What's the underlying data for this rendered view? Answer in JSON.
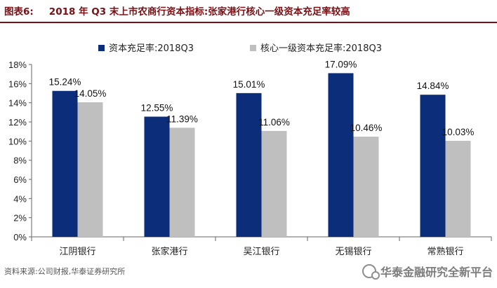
{
  "figure": {
    "label": "图表6:",
    "title": "2018 年 Q3 末上市农商行资本指标:张家港行核心一级资本充足率较高",
    "source": "资料来源:公司财报,华泰证券研究所",
    "watermark": "华泰金融研究全新平台"
  },
  "colors": {
    "title": "#7a0f14",
    "series1": "#0b2d7a",
    "series2": "#bfbfbf"
  },
  "chart_data": {
    "type": "bar",
    "categories": [
      "江阴银行",
      "张家港行",
      "吴江银行",
      "无锡银行",
      "常熟银行"
    ],
    "series": [
      {
        "name": "资本充足率:2018Q3",
        "values": [
          15.24,
          12.55,
          15.01,
          17.09,
          14.84
        ],
        "labels": [
          "15.24%",
          "12.55%",
          "15.01%",
          "17.09%",
          "14.84%"
        ]
      },
      {
        "name": "核心一级资本充足率:2018Q3",
        "values": [
          14.05,
          11.39,
          11.06,
          10.46,
          10.03
        ],
        "labels": [
          "14.05%",
          "11.39%",
          "11.06%",
          "10.46%",
          "10.03%"
        ]
      }
    ],
    "ylim": [
      0,
      18
    ],
    "yticks": [
      "0%",
      "2%",
      "4%",
      "6%",
      "8%",
      "10%",
      "12%",
      "14%",
      "16%",
      "18%"
    ],
    "legend": "top-left",
    "grid": false
  }
}
